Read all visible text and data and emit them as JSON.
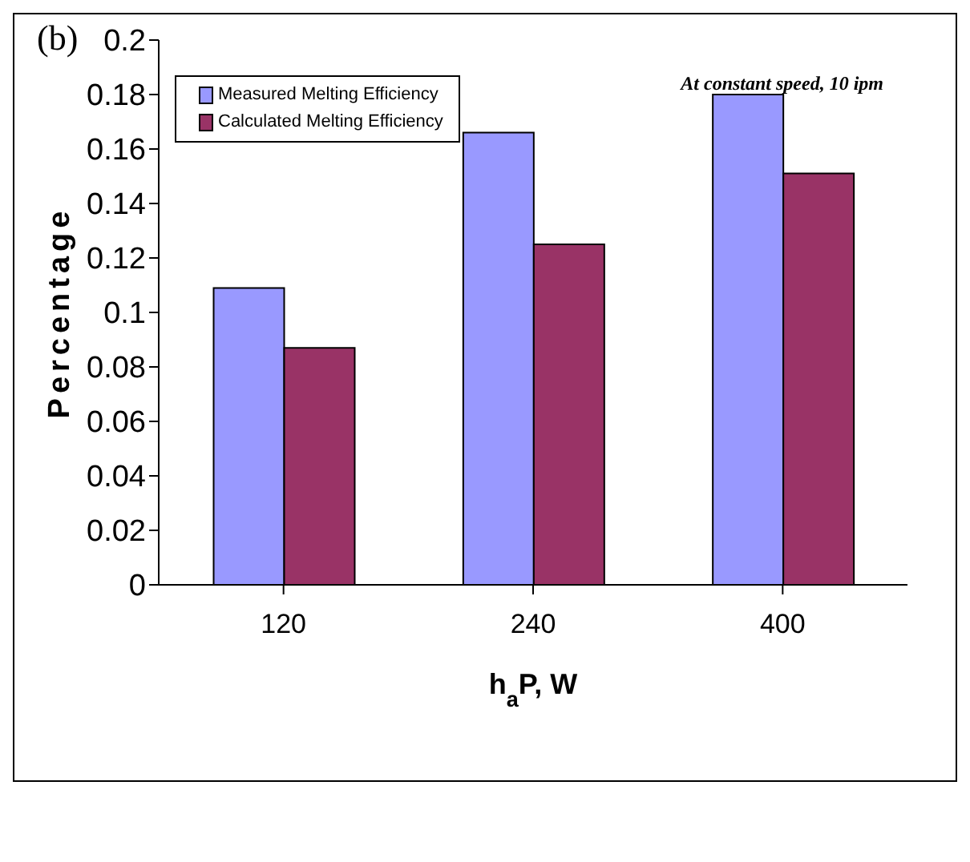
{
  "chart_data": {
    "type": "bar",
    "ylabel": "Percentage",
    "xlabel": "h$_{a}$P, W",
    "categories": [
      "120",
      "240",
      "400"
    ],
    "series": [
      {
        "name": "Measured Melting Efficiency",
        "color": "#9999ff",
        "values": [
          0.109,
          0.166,
          0.18
        ]
      },
      {
        "name": "Calculated Melting Efficiency",
        "color": "#993366",
        "values": [
          0.087,
          0.125,
          0.151
        ]
      }
    ],
    "ylim": [
      0,
      0.2
    ],
    "yticks": [
      0,
      0.02,
      0.04,
      0.06,
      0.08,
      0.1,
      0.12,
      0.14,
      0.16,
      0.18,
      0.2
    ],
    "annotations": [
      "(b)",
      "At constant speed, 10 ipm"
    ],
    "legend": "top left",
    "grid": false
  }
}
